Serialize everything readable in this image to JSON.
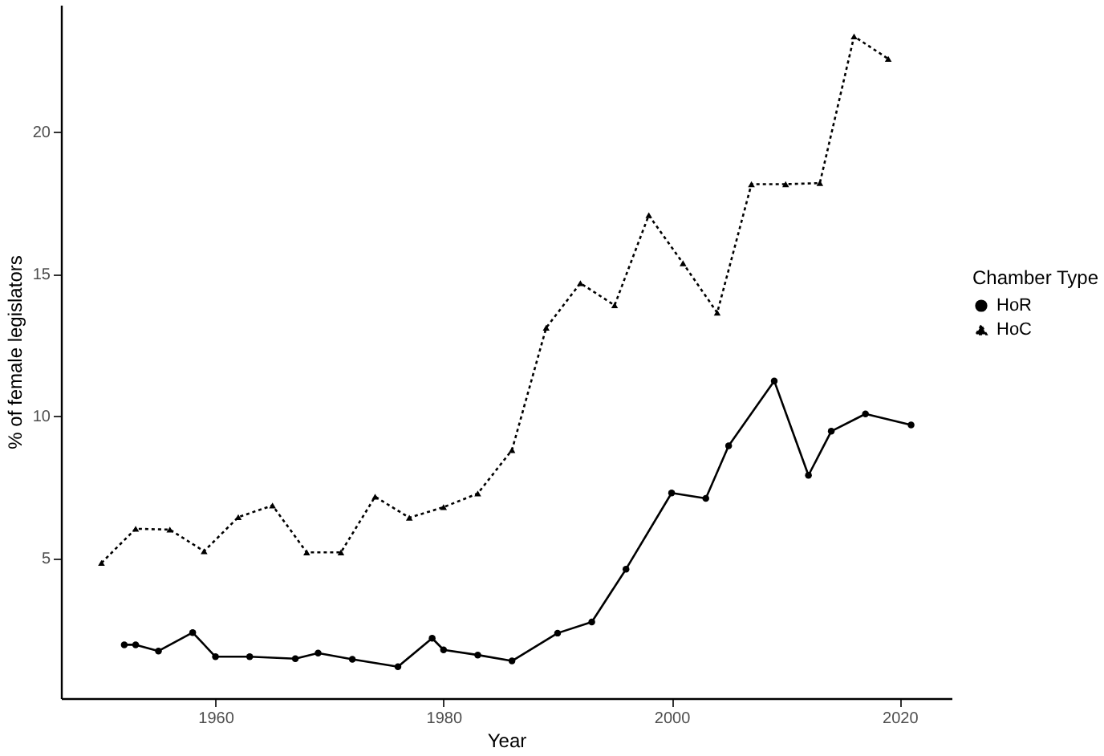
{
  "chart_data": {
    "type": "line",
    "xlabel": "Year",
    "ylabel": "% of female legislators",
    "legend_title": "Chamber Type",
    "legend": "right",
    "grid": false,
    "xlim": [
      1946.45,
      2024.55
    ],
    "xticks": [
      1960,
      1980,
      2000,
      2020
    ],
    "ylim": [
      0.07,
      24.46
    ],
    "yticks": [
      5,
      10,
      15,
      20
    ],
    "series": [
      {
        "name": "HoR",
        "color": "#000000",
        "marker": "circle",
        "line_style": "solid",
        "x": [
          1952,
          1953,
          1955,
          1958,
          1960,
          1963,
          1967,
          1969,
          1972,
          1976,
          1979,
          1980,
          1983,
          1986,
          1990,
          1993,
          1996,
          2000,
          2003,
          2005,
          2009,
          2012,
          2014,
          2017,
          2021
        ],
        "values": [
          1.95,
          1.95,
          1.73,
          2.38,
          1.53,
          1.53,
          1.46,
          1.66,
          1.44,
          1.18,
          2.18,
          1.77,
          1.59,
          1.38,
          2.36,
          2.75,
          4.61,
          7.29,
          7.1,
          8.95,
          11.23,
          7.91,
          9.46,
          10.07,
          9.68
        ]
      },
      {
        "name": "HoC",
        "color": "#000000",
        "marker": "triangle",
        "line_style": "dotted",
        "x": [
          1950,
          1953,
          1956,
          1959,
          1962,
          1965,
          1968,
          1971,
          1974,
          1977,
          1980,
          1983,
          1986,
          1989,
          1992,
          1995,
          1998,
          2001,
          2004,
          2007,
          2010,
          2013,
          2016,
          2019
        ],
        "values": [
          4.83,
          6.03,
          6.0,
          5.24,
          6.44,
          6.85,
          5.2,
          5.2,
          7.16,
          6.42,
          6.79,
          7.27,
          8.8,
          13.1,
          14.67,
          13.89,
          17.06,
          15.37,
          13.63,
          18.15,
          18.15,
          18.19,
          23.35,
          22.56
        ]
      }
    ]
  }
}
